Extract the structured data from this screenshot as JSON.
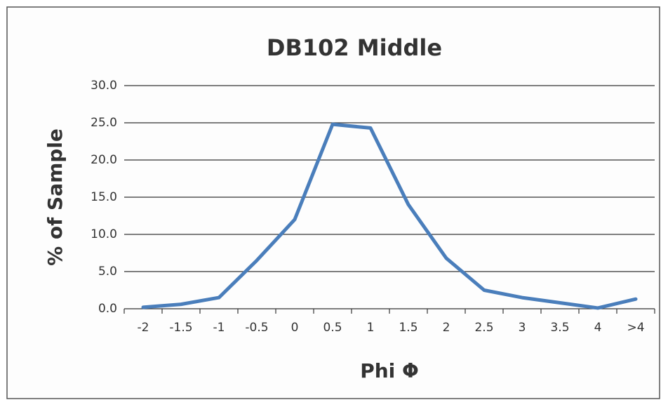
{
  "chart_data": {
    "type": "line",
    "title": "DB102 Middle",
    "x_label": "Phi Φ",
    "y_label": "% of Sample",
    "categories": [
      "-2",
      "-1.5",
      "-1",
      "-0.5",
      "0",
      "0.5",
      "1",
      "1.5",
      "2",
      "2.5",
      "3",
      "3.5",
      "4",
      ">4"
    ],
    "series": [
      {
        "name": "DB102 Middle",
        "color": "#4a7ebb",
        "values": [
          0.2,
          0.6,
          1.5,
          6.5,
          12.0,
          24.8,
          24.3,
          14.0,
          6.8,
          2.5,
          1.5,
          0.8,
          0.1,
          1.3
        ]
      }
    ],
    "ylim": [
      0,
      30
    ],
    "yticks": [
      {
        "value": 0,
        "label": "0.0"
      },
      {
        "value": 5,
        "label": "5.0"
      },
      {
        "value": 10,
        "label": "10.0"
      },
      {
        "value": 15,
        "label": "15.0"
      },
      {
        "value": 20,
        "label": "20.0"
      },
      {
        "value": 25,
        "label": "25.0"
      },
      {
        "value": 30,
        "label": "30.0"
      }
    ],
    "grid": true
  }
}
